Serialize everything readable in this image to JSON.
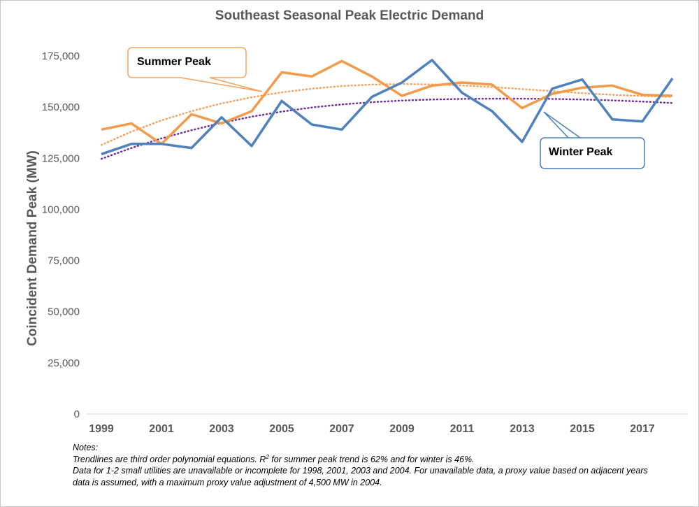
{
  "chart_data": {
    "type": "line",
    "title": "Southeast Seasonal Peak Electric Demand",
    "ylabel": "Coincident Demand Peak (MW)",
    "xlabel": "",
    "ylim": [
      0,
      175000
    ],
    "y_ticks": [
      0,
      25000,
      50000,
      75000,
      100000,
      125000,
      150000,
      175000
    ],
    "y_tick_labels": [
      "0",
      "25,000",
      "50,000",
      "75,000",
      "100,000",
      "125,000",
      "150,000",
      "175,000"
    ],
    "x": [
      1999,
      2000,
      2001,
      2002,
      2003,
      2004,
      2005,
      2006,
      2007,
      2008,
      2009,
      2010,
      2011,
      2012,
      2013,
      2014,
      2015,
      2016,
      2017,
      2018
    ],
    "x_tick_labels": [
      "1999",
      "2001",
      "2003",
      "2005",
      "2007",
      "2009",
      "2011",
      "2013",
      "2015",
      "2017"
    ],
    "grid": false,
    "legend": "none",
    "series": [
      {
        "name": "Summer Peak",
        "color": "#F4A261",
        "line_color": "#F29B4A",
        "values": [
          139000,
          142000,
          132000,
          146500,
          142000,
          148000,
          167000,
          165000,
          172500,
          165000,
          155500,
          160500,
          162000,
          161000,
          149500,
          156500,
          159500,
          160500,
          156000,
          155500
        ],
        "trend": [
          131500,
          138000,
          143500,
          148000,
          151800,
          154800,
          157200,
          159000,
          160300,
          161000,
          161300,
          161100,
          160600,
          159800,
          158800,
          157800,
          156800,
          156000,
          155400,
          155000
        ]
      },
      {
        "name": "Winter Peak",
        "color": "#4A7EBB",
        "line_color": "#4F81BD",
        "values": [
          127000,
          132000,
          132000,
          130000,
          145000,
          131000,
          153000,
          141500,
          139000,
          155000,
          162000,
          173000,
          157000,
          148000,
          133000,
          159000,
          163500,
          144000,
          143000,
          164000
        ],
        "trend": [
          124700,
          130000,
          134700,
          138700,
          142300,
          145300,
          147800,
          149800,
          151300,
          152400,
          153200,
          153700,
          154000,
          154100,
          154100,
          154000,
          153700,
          153300,
          152700,
          152000
        ]
      }
    ],
    "trend_color": "#7030A0",
    "annotations": [
      {
        "text": "Summer Peak",
        "series": "Summer Peak"
      },
      {
        "text": "Winter Peak",
        "series": "Winter Peak"
      }
    ]
  },
  "notes": {
    "heading": "Notes:",
    "line1_pre": "Trendlines are third order polynomial equations. R",
    "line1_sup": "2",
    "line1_post": " for summer peak trend is 62% and for winter is 46%.",
    "line2": "Data for 1-2 small utilities are unavailable or incomplete for 1998, 2001, 2003 and 2004. For unavailable data, a proxy value based on adjacent years",
    "line3": "data is assumed, with a maximum proxy value adjustment of 4,500 MW in 2004."
  }
}
